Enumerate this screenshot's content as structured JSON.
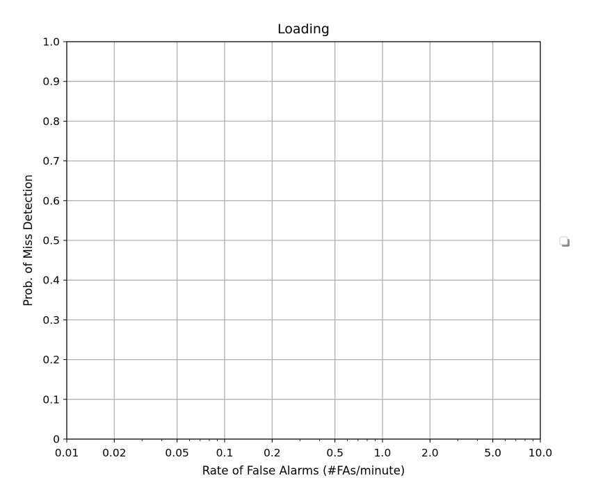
{
  "chart_data": {
    "type": "line",
    "title": "Loading",
    "xlabel": "Rate of False Alarms (#FAs/minute)",
    "ylabel": "Prob. of Miss Detection",
    "x_scale": "log",
    "xlim": [
      0.01,
      10.0
    ],
    "ylim": [
      0.0,
      1.0
    ],
    "x_ticks": [
      0.01,
      0.02,
      0.05,
      0.1,
      0.2,
      0.5,
      1.0,
      2.0,
      5.0,
      10.0
    ],
    "x_tick_labels": [
      "0.01",
      "0.02",
      "0.05",
      "0.1",
      "0.2",
      "0.5",
      "1.0",
      "2.0",
      "5.0",
      "10.0"
    ],
    "y_ticks": [
      0,
      0.1,
      0.2,
      0.3,
      0.4,
      0.5,
      0.6,
      0.7,
      0.8,
      0.9,
      1.0
    ],
    "y_tick_labels": [
      "0",
      "0.1",
      "0.2",
      "0.3",
      "0.4",
      "0.5",
      "0.6",
      "0.7",
      "0.8",
      "0.9",
      "1.0"
    ],
    "grid": true,
    "legend": "right",
    "series": []
  },
  "colors": {
    "grid": "#b0b0b0",
    "axis": "#000000",
    "background": "#ffffff"
  },
  "legend_icon": "legend-marker-icon"
}
